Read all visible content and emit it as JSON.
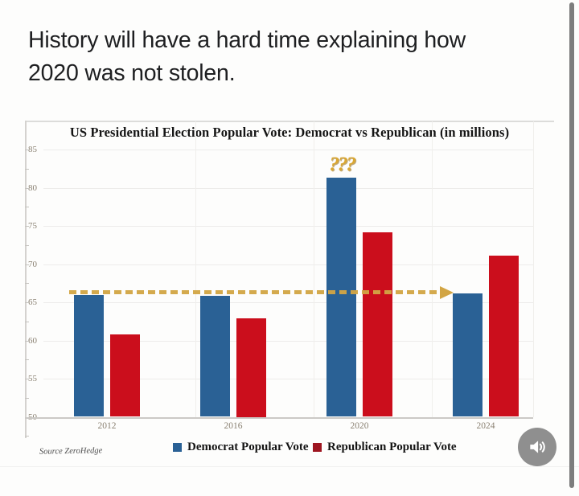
{
  "post": {
    "headline_line1": "History will have a hard time explaining how",
    "headline_line2": "2020 was not stolen.",
    "source_credit": "Source ZeroHedge"
  },
  "chart_data": {
    "type": "bar",
    "title": "US Presidential Election Popular Vote: Democrat vs Republican (in millions)",
    "categories": [
      "2012",
      "2016",
      "2020",
      "2024"
    ],
    "series": [
      {
        "name": "Democrat Popular Vote",
        "color": "#2a6195",
        "legend_color": "#2a6195",
        "values": [
          65.9,
          65.8,
          81.3,
          66.2
        ]
      },
      {
        "name": "Republican Popular Vote",
        "color": "#cb0e1c",
        "legend_color": "#9d1520",
        "values": [
          60.8,
          62.9,
          74.2,
          71.1
        ]
      }
    ],
    "ylabel": "",
    "xlabel": "",
    "ylim": [
      50,
      85
    ],
    "yticks": [
      85,
      80,
      75,
      70,
      65,
      60,
      55,
      50
    ],
    "grid": true,
    "legend_position": "bottom",
    "annotations": [
      {
        "type": "dashed-arrow",
        "level": 66.3,
        "direction": "right",
        "spans": "2012 to 2024",
        "color": "#d2a544"
      },
      {
        "type": "text",
        "label": "???",
        "above_category": "2020",
        "series": "Democrat Popular Vote",
        "color": "#d9a733"
      }
    ]
  },
  "media": {
    "audio_button_icon": "speaker-icon"
  },
  "colors": {
    "democrat_bar": "#2a6195",
    "republican_bar": "#cb0e1c",
    "gold_annotation": "#d2a544"
  }
}
